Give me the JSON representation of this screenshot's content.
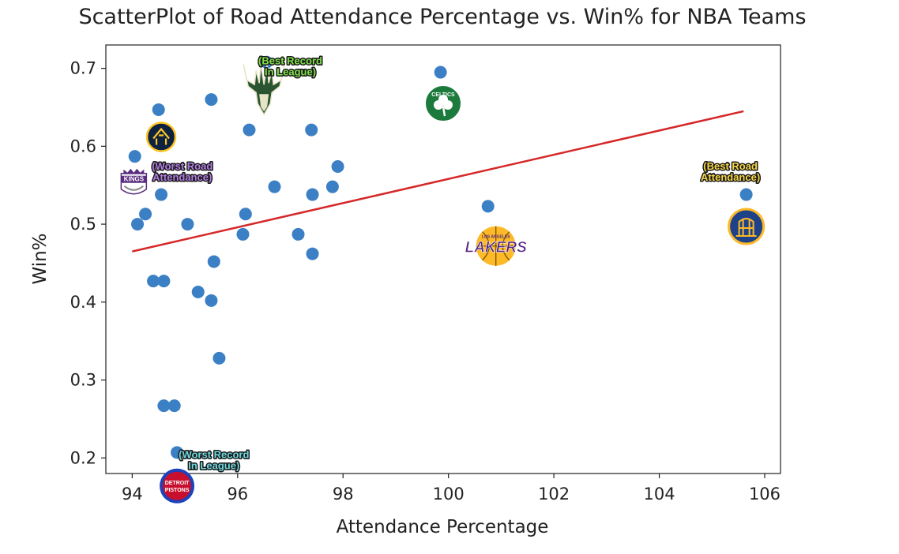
{
  "chart_data": {
    "type": "scatter",
    "title": "ScatterPlot of Road Attendance Percentage vs. Win% for NBA Teams",
    "xlabel": "Attendance Percentage",
    "ylabel": "Win%",
    "xlim": [
      93.5,
      106.3
    ],
    "ylim": [
      0.18,
      0.73
    ],
    "xticks": [
      94,
      96,
      98,
      100,
      102,
      104,
      106
    ],
    "yticks": [
      0.2,
      0.3,
      0.4,
      0.5,
      0.6,
      0.7
    ],
    "grid": false,
    "point_color": "#3b7fc4",
    "trendline": {
      "color": "#d62728",
      "x": [
        94.0,
        105.6
      ],
      "y": [
        0.465,
        0.645
      ]
    },
    "points": [
      {
        "x": 94.05,
        "y": 0.587
      },
      {
        "x": 94.1,
        "y": 0.5
      },
      {
        "x": 94.25,
        "y": 0.513
      },
      {
        "x": 94.5,
        "y": 0.647
      },
      {
        "x": 94.55,
        "y": 0.538
      },
      {
        "x": 94.4,
        "y": 0.427
      },
      {
        "x": 94.6,
        "y": 0.427
      },
      {
        "x": 94.6,
        "y": 0.267
      },
      {
        "x": 94.8,
        "y": 0.267
      },
      {
        "x": 94.85,
        "y": 0.207
      },
      {
        "x": 95.05,
        "y": 0.5
      },
      {
        "x": 95.25,
        "y": 0.413
      },
      {
        "x": 95.5,
        "y": 0.66
      },
      {
        "x": 95.5,
        "y": 0.402
      },
      {
        "x": 95.55,
        "y": 0.452
      },
      {
        "x": 95.65,
        "y": 0.328
      },
      {
        "x": 96.1,
        "y": 0.487
      },
      {
        "x": 96.15,
        "y": 0.513
      },
      {
        "x": 96.22,
        "y": 0.621
      },
      {
        "x": 96.55,
        "y": 0.708
      },
      {
        "x": 96.7,
        "y": 0.548
      },
      {
        "x": 97.15,
        "y": 0.487
      },
      {
        "x": 97.4,
        "y": 0.621
      },
      {
        "x": 97.42,
        "y": 0.538
      },
      {
        "x": 97.42,
        "y": 0.462
      },
      {
        "x": 97.8,
        "y": 0.548
      },
      {
        "x": 97.9,
        "y": 0.574
      },
      {
        "x": 99.85,
        "y": 0.695
      },
      {
        "x": 100.75,
        "y": 0.523
      },
      {
        "x": 105.65,
        "y": 0.538
      }
    ],
    "annotations": [
      {
        "lines": [
          "(Best Record",
          "In League)"
        ],
        "color": "#7ee04a",
        "x": 97.0,
        "y": 0.705
      },
      {
        "lines": [
          "(Worst Road",
          "Attendance)"
        ],
        "color": "#b07de0",
        "x": 94.95,
        "y": 0.57
      },
      {
        "lines": [
          "(Best Road",
          "Attendance)"
        ],
        "color": "#f5d547",
        "x": 105.35,
        "y": 0.57
      },
      {
        "lines": [
          "(Worst Record",
          "In League)"
        ],
        "color": "#6fd6dc",
        "x": 95.55,
        "y": 0.1995
      }
    ],
    "logos": [
      {
        "team": "bucks-logo",
        "x": 96.5,
        "y": 0.675
      },
      {
        "team": "celtics-logo",
        "x": 99.9,
        "y": 0.655
      },
      {
        "team": "nuggets-logo",
        "x": 94.55,
        "y": 0.612
      },
      {
        "team": "kings-logo",
        "x": 94.03,
        "y": 0.553
      },
      {
        "team": "lakers-logo",
        "x": 100.9,
        "y": 0.472
      },
      {
        "team": "warriors-logo",
        "x": 105.65,
        "y": 0.497
      },
      {
        "team": "pistons-logo",
        "x": 94.85,
        "y": 0.164
      }
    ],
    "logo_text": {
      "celtics": "CELTICS",
      "kings": "KINGS",
      "lakers": "LAKERS",
      "lakers_top": "LOS ANGELES",
      "pistons_1": "DETROIT",
      "pistons_2": "PISTONS"
    }
  }
}
